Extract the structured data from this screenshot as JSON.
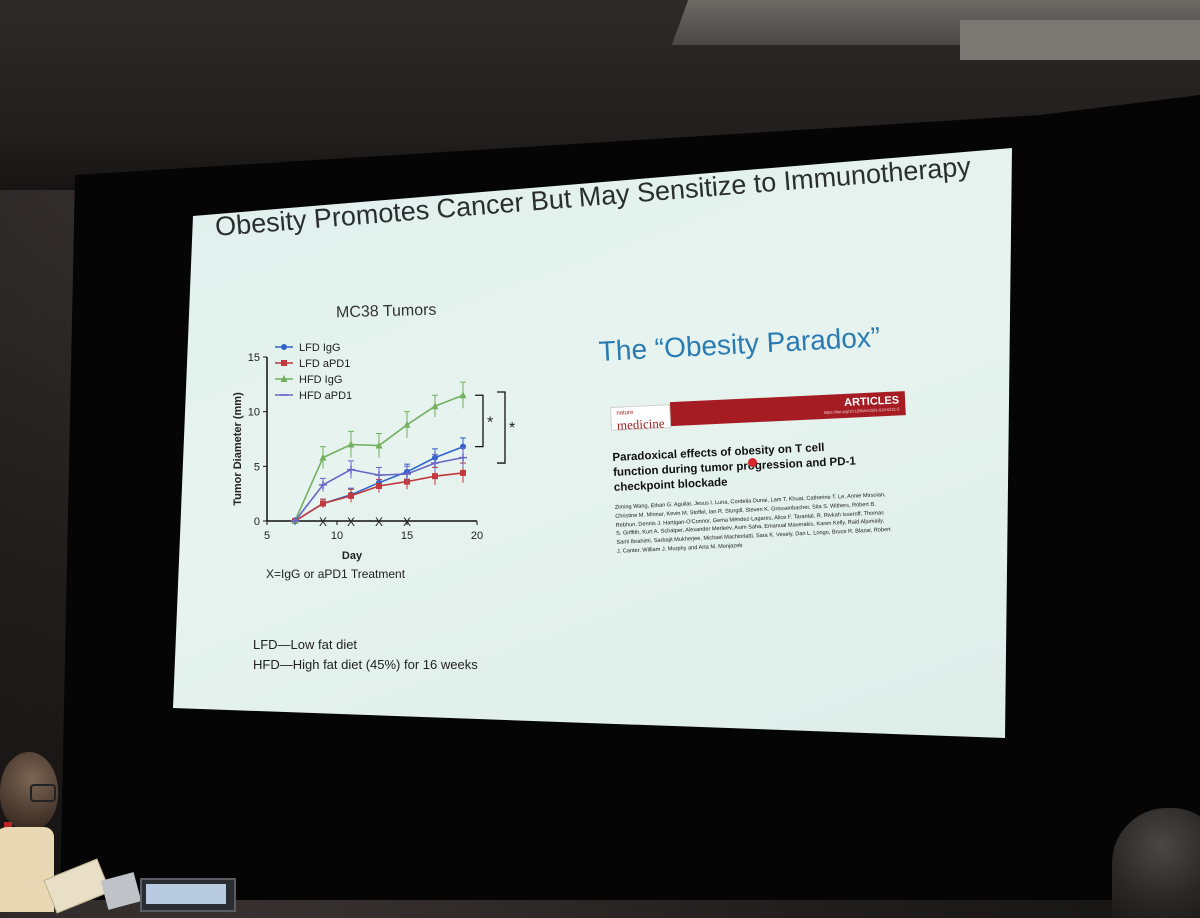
{
  "slide": {
    "title": "Obesity Promotes Cancer But May Sensitize to Immunotherapy",
    "chart_heading": "MC38 Tumors",
    "treatment_note": "X=IgG or aPD1 Treatment",
    "footnotes": [
      "LFD—Low fat diet",
      "HFD—High fat diet (45%) for 16 weeks"
    ],
    "paradox_heading": "The “Obesity Paradox”",
    "paper": {
      "journal_top": "nature",
      "journal_bottom": "medicine",
      "section": "ARTICLES",
      "doi": "https://doi.org/10.1038/s41591-018-0221-5",
      "title": "Paradoxical effects of obesity on T cell function during tumor progression and PD-1 checkpoint blockade",
      "authors": "Ziming Wang, Ethan G. Aguilar, Jesus I. Luna, Cordelia Dunai, Lam T. Khuat, Catherine T. Le, Annie Mirsoian, Christine M. Minnar, Kevin M. Stoffel, Ian R. Sturgill, Steven K. Grossenbacher, Sita S. Withers, Robert B. Rebhun, Dennis J. Hartigan-O'Connor, Gema Méndez-Lagares, Alice F. Tarantal, R. Rivkah Isseroff, Thomas S. Griffith, Kurt A. Schalper, Alexander Merleev, Asim Saha, Emanual Maverakis, Karen Kelly, Raid Aljumaily, Sami Ibrahimi, Sarbajit Mukherjee, Michael Machiorlatti, Sara K. Vesely, Dan L. Longo, Bruce R. Blazar, Robert J. Canter, William J. Murphy and Arta M. Monjazeb"
    }
  },
  "colors": {
    "lfd_igg": "#2f63c9",
    "lfd_apd1": "#c0393c",
    "hfd_igg": "#73b05f",
    "hfd_apd1": "#6666c7",
    "paradox": "#2a7bb2",
    "journal_red": "#a51d23"
  },
  "chart_data": {
    "type": "line",
    "xlabel": "Day",
    "ylabel": "Tumor Diameter (mm)",
    "xlim": [
      5,
      20
    ],
    "ylim": [
      0,
      15
    ],
    "xticks": [
      5,
      10,
      15,
      20
    ],
    "yticks": [
      0,
      5,
      10,
      15
    ],
    "treatment_days": [
      9,
      11,
      13,
      15
    ],
    "treatment_marker": "X",
    "significance": [
      "*",
      "*"
    ],
    "series": [
      {
        "name": "LFD IgG",
        "marker": "circle",
        "x": [
          7,
          9,
          11,
          13,
          15,
          17,
          19
        ],
        "y": [
          0,
          1.6,
          2.4,
          3.5,
          4.5,
          5.8,
          6.8
        ],
        "err": [
          0,
          0.4,
          0.6,
          0.7,
          0.7,
          0.8,
          0.8
        ]
      },
      {
        "name": "LFD aPD1",
        "marker": "square",
        "x": [
          7,
          9,
          11,
          13,
          15,
          17,
          19
        ],
        "y": [
          0,
          1.6,
          2.3,
          3.2,
          3.6,
          4.1,
          4.4
        ],
        "err": [
          0,
          0.4,
          0.6,
          0.6,
          0.7,
          0.8,
          0.9
        ]
      },
      {
        "name": "HFD IgG",
        "marker": "triangle",
        "x": [
          7,
          9,
          11,
          13,
          15,
          17,
          19
        ],
        "y": [
          0,
          5.8,
          7.0,
          6.9,
          8.8,
          10.5,
          11.5
        ],
        "err": [
          0,
          1.0,
          1.2,
          1.1,
          1.2,
          1.0,
          1.2
        ]
      },
      {
        "name": "HFD aPD1",
        "marker": "tri-down",
        "x": [
          7,
          9,
          11,
          13,
          15,
          17,
          19
        ],
        "y": [
          0,
          3.3,
          4.7,
          4.2,
          4.3,
          5.3,
          5.8
        ],
        "err": [
          0,
          0.6,
          0.8,
          0.7,
          0.7,
          0.8,
          0.9
        ]
      }
    ]
  }
}
